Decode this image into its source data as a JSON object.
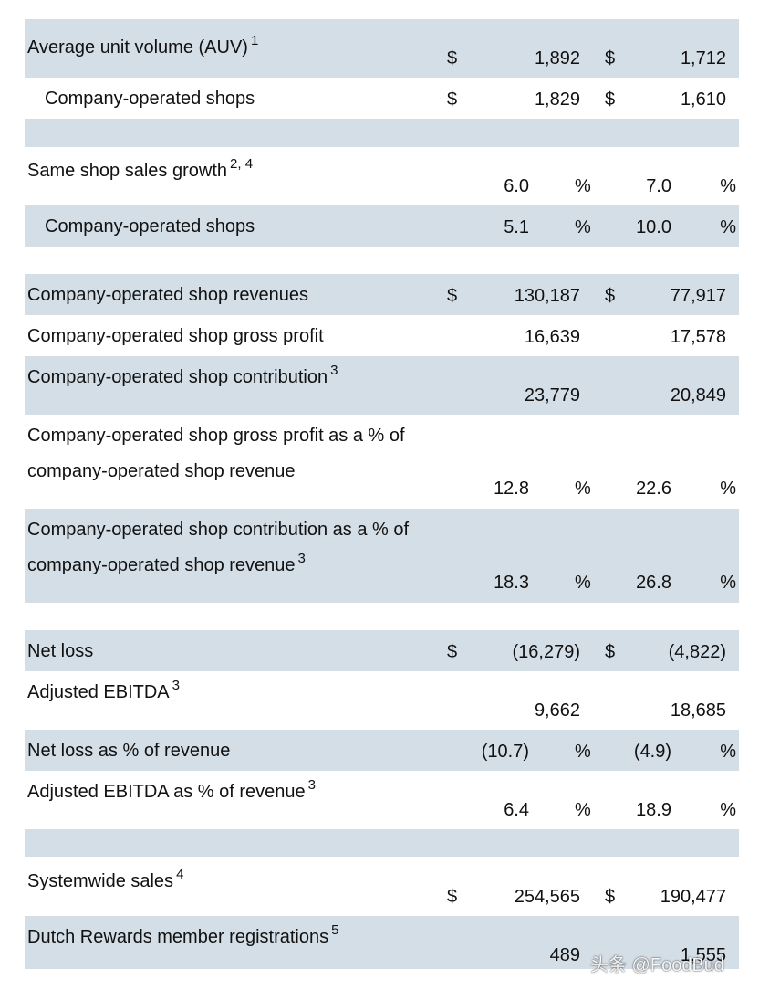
{
  "rows": [
    {
      "label": "Average unit volume (AUV)",
      "sup": "1",
      "cur1": "$",
      "v1": "1,892",
      "cur2": "$",
      "v2": "1,712"
    },
    {
      "label": "Company-operated shops",
      "cur1": "$",
      "v1": "1,829",
      "cur2": "$",
      "v2": "1,610"
    },
    {
      "label": "Same shop sales growth",
      "sup": "2, 4",
      "v1": "6.0",
      "p1": "%",
      "v2": "7.0",
      "p2": "%"
    },
    {
      "label": "Company-operated shops",
      "v1": "5.1",
      "p1": "%",
      "v2": "10.0",
      "p2": "%"
    },
    {
      "label": "Company-operated shop revenues",
      "cur1": "$",
      "v1": "130,187",
      "cur2": "$",
      "v2": "77,917"
    },
    {
      "label": "Company-operated shop gross profit",
      "v1": "16,639",
      "v2": "17,578"
    },
    {
      "label": "Company-operated shop contribution",
      "sup": "3",
      "v1": "23,779",
      "v2": "20,849"
    },
    {
      "label_line1": "Company-operated shop gross profit as a % of",
      "label_line2": "company-operated shop revenue",
      "v1": "12.8",
      "p1": "%",
      "v2": "22.6",
      "p2": "%"
    },
    {
      "label_line1": "Company-operated shop contribution as a % of",
      "label_line2": "company-operated shop revenue",
      "sup": "3",
      "v1": "18.3",
      "p1": "%",
      "v2": "26.8",
      "p2": "%"
    },
    {
      "label": "Net loss",
      "cur1": "$",
      "v1": "(16,279)",
      "cur2": "$",
      "v2": "(4,822)"
    },
    {
      "label": "Adjusted EBITDA",
      "sup": "3",
      "v1": "9,662",
      "v2": "18,685"
    },
    {
      "label": "Net loss as % of revenue",
      "v1": "(10.7)",
      "p1": "%",
      "v2": "(4.9)",
      "p2": "%"
    },
    {
      "label": "Adjusted EBITDA as % of revenue",
      "sup": "3",
      "v1": "6.4",
      "p1": "%",
      "v2": "18.9",
      "p2": "%"
    },
    {
      "label": "Systemwide sales",
      "sup": "4",
      "cur1": "$",
      "v1": "254,565",
      "cur2": "$",
      "v2": "190,477"
    },
    {
      "label": "Dutch Rewards member registrations",
      "sup": "5",
      "v1": "489",
      "v2": "1,555"
    }
  ],
  "watermark": "头条 @FoodBud",
  "colors": {
    "row_shade": "#d4dee7",
    "text": "#111111"
  }
}
